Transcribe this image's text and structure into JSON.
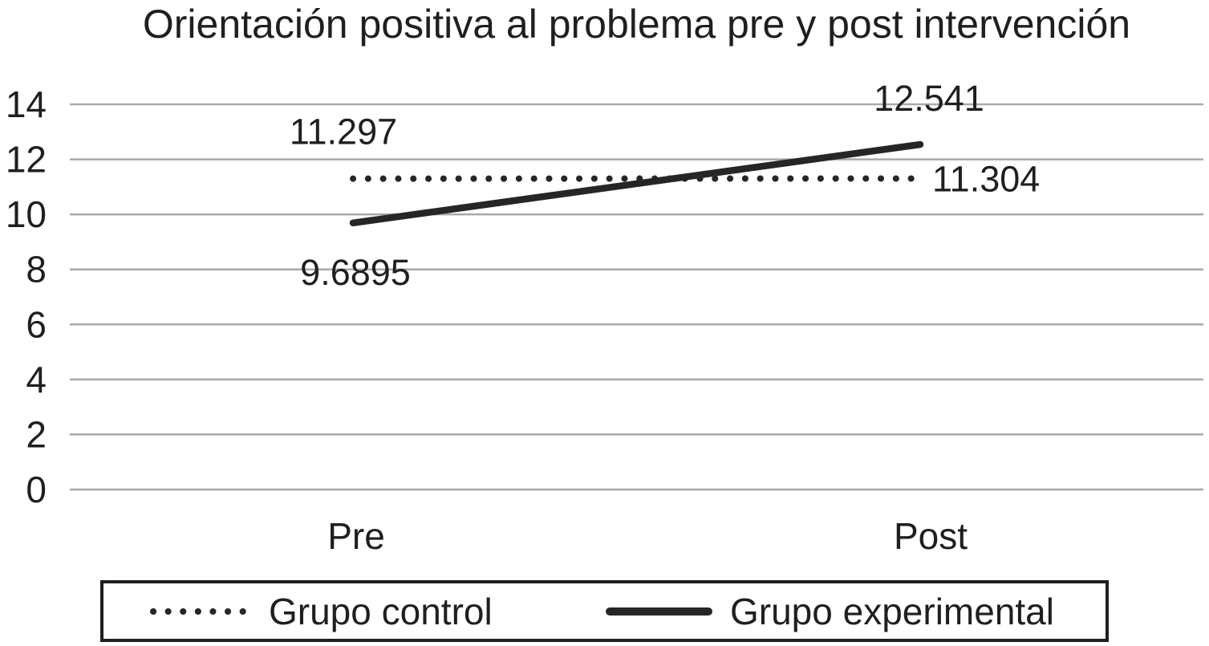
{
  "chart_data": {
    "type": "line",
    "title": "Orientación positiva al problema pre y post intervención",
    "categories": [
      "Pre",
      "Post"
    ],
    "series": [
      {
        "name": "Grupo control",
        "line_style": "dotted",
        "values": [
          11.297,
          11.304
        ],
        "point_labels": [
          "11.297",
          "11.304"
        ]
      },
      {
        "name": "Grupo experimental",
        "line_style": "solid",
        "values": [
          9.6895,
          12.541
        ],
        "point_labels": [
          "9.6895",
          "12.541"
        ]
      }
    ],
    "xlabel": "",
    "ylabel": "",
    "ylim": [
      0,
      14
    ],
    "yticks": [
      0,
      2,
      4,
      6,
      8,
      10,
      12,
      14
    ],
    "grid": true,
    "legend_position": "bottom",
    "colors": {
      "line": "#262626",
      "gridline": "#a9a9a9",
      "text": "#1f1f1f"
    }
  }
}
